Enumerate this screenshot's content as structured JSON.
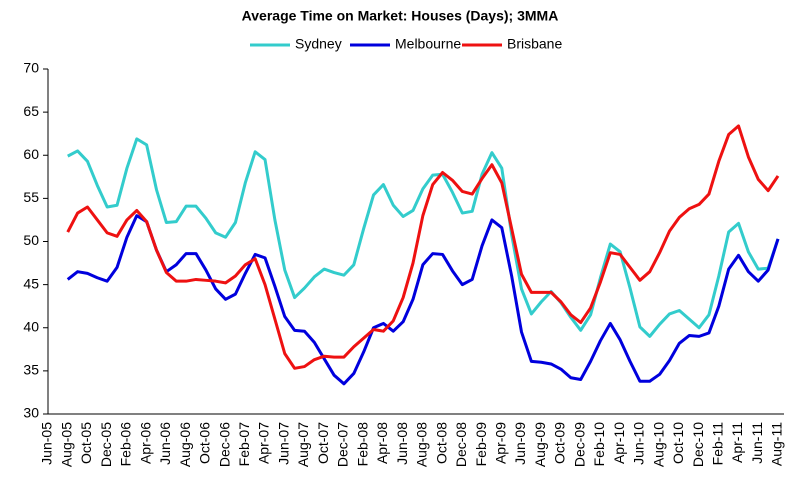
{
  "chart_data": {
    "type": "line",
    "title": "Average Time on Market: Houses (Days); 3MMA",
    "categories": [
      "Jun-05",
      null,
      "Aug-05",
      null,
      "Oct-05",
      null,
      "Dec-05",
      null,
      "Feb-06",
      null,
      "Apr-06",
      null,
      "Jun-06",
      null,
      "Aug-06",
      null,
      "Oct-06",
      null,
      "Dec-06",
      null,
      "Feb-07",
      null,
      "Apr-07",
      null,
      "Jun-07",
      null,
      "Aug-07",
      null,
      "Oct-07",
      null,
      "Dec-07",
      null,
      "Feb-08",
      null,
      "Apr-08",
      null,
      "Jun-08",
      null,
      "Aug-08",
      null,
      "Oct-08",
      null,
      "Dec-08",
      null,
      "Feb-09",
      null,
      "Apr-09",
      null,
      "Jun-09",
      null,
      "Aug-09",
      null,
      "Oct-09",
      null,
      "Dec-09",
      null,
      "Feb-10",
      null,
      "Apr-10",
      null,
      "Jun-10",
      null,
      "Aug-10",
      null,
      "Oct-10",
      null,
      "Dec-10",
      null,
      "Feb-11",
      null,
      "Apr-11",
      null,
      "Jun-11",
      null,
      "Aug-11"
    ],
    "series": [
      {
        "name": "Sydney",
        "color": "#33cccc",
        "values": [
          null,
          null,
          59.9,
          60.5,
          59.3,
          56.5,
          54.0,
          54.2,
          58.5,
          61.9,
          61.2,
          56.0,
          52.2,
          52.3,
          54.1,
          54.1,
          52.7,
          51.0,
          50.5,
          52.2,
          56.8,
          60.4,
          59.5,
          52.5,
          46.7,
          43.5,
          44.6,
          45.9,
          46.8,
          46.4,
          46.1,
          47.3,
          51.5,
          55.4,
          56.6,
          54.2,
          52.9,
          53.6,
          56.1,
          57.7,
          57.8,
          55.7,
          53.3,
          53.5,
          57.8,
          60.3,
          58.5,
          50.8,
          44.5,
          41.6,
          43.0,
          44.2,
          42.9,
          41.2,
          39.7,
          41.5,
          45.8,
          49.7,
          48.8,
          44.6,
          40.1,
          39.0,
          40.4,
          41.6,
          42.0,
          41.0,
          40.0,
          41.5,
          46.0,
          51.1,
          52.1,
          48.8,
          46.8,
          46.9,
          50.3
        ]
      },
      {
        "name": "Melbourne",
        "color": "#0000dd",
        "values": [
          null,
          null,
          45.6,
          46.5,
          46.3,
          45.8,
          45.4,
          47.0,
          50.5,
          53.0,
          52.3,
          49.0,
          46.5,
          47.3,
          48.6,
          48.6,
          46.7,
          44.5,
          43.3,
          43.9,
          46.3,
          48.5,
          48.1,
          44.8,
          41.3,
          39.7,
          39.6,
          38.3,
          36.4,
          34.5,
          33.5,
          34.7,
          37.2,
          40.0,
          40.5,
          39.6,
          40.7,
          43.3,
          47.3,
          48.6,
          48.5,
          46.6,
          45.0,
          45.6,
          49.5,
          52.5,
          51.6,
          46.0,
          39.5,
          36.1,
          36.0,
          35.8,
          35.2,
          34.2,
          34.0,
          36.1,
          38.5,
          40.5,
          38.6,
          36.1,
          33.8,
          33.8,
          34.6,
          36.2,
          38.2,
          39.1,
          39.0,
          39.4,
          42.5,
          46.8,
          48.4,
          46.5,
          45.4,
          46.7,
          50.3
        ]
      },
      {
        "name": "Brisbane",
        "color": "#ee1111",
        "values": [
          null,
          null,
          51.1,
          53.3,
          54.0,
          52.5,
          51.0,
          50.6,
          52.5,
          53.6,
          52.3,
          49.0,
          46.4,
          45.4,
          45.4,
          45.6,
          45.5,
          45.4,
          45.2,
          46.0,
          47.3,
          48.0,
          45.0,
          41.0,
          37.0,
          35.3,
          35.5,
          36.3,
          36.7,
          36.6,
          36.6,
          37.8,
          38.8,
          39.8,
          39.6,
          40.8,
          43.5,
          47.5,
          53.0,
          56.6,
          58.0,
          57.1,
          55.8,
          55.5,
          57.3,
          58.9,
          56.8,
          51.5,
          46.2,
          44.1,
          44.1,
          44.1,
          43.0,
          41.5,
          40.6,
          42.3,
          45.3,
          48.7,
          48.5,
          47.0,
          45.5,
          46.5,
          48.7,
          51.2,
          52.8,
          53.8,
          54.3,
          55.5,
          59.3,
          62.4,
          63.4,
          59.8,
          57.2,
          55.9,
          57.6
        ]
      }
    ],
    "ylim": [
      30,
      70
    ],
    "yticks": [
      30,
      35,
      40,
      45,
      50,
      55,
      60,
      65,
      70
    ],
    "grid": false
  }
}
